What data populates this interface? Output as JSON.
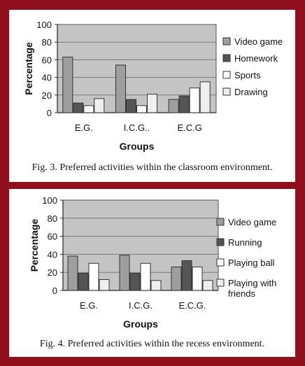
{
  "colors": {
    "frame": "#8f0f1c",
    "plot_bg": "#c4c4c4",
    "series": [
      "#9e9e9e",
      "#555555",
      "#ffffff",
      "#efefef"
    ]
  },
  "chart_data": [
    {
      "type": "bar",
      "title": "",
      "xlabel": "Groups",
      "ylabel": "Percentage",
      "ylim": [
        0,
        100
      ],
      "yticks": [
        "0",
        "20",
        "40",
        "60",
        "80",
        "100"
      ],
      "categories": [
        "E.G.",
        "I.C.G..",
        "E.C.G"
      ],
      "series": [
        {
          "name": "Video game",
          "values": [
            63,
            54,
            15
          ]
        },
        {
          "name": "Homework",
          "values": [
            11,
            15,
            19
          ]
        },
        {
          "name": "Sports",
          "values": [
            8,
            8,
            28
          ]
        },
        {
          "name": "Drawing",
          "values": [
            16,
            21,
            35
          ]
        }
      ],
      "legend": "right",
      "grid": true,
      "caption": "Fig. 3.  Preferred activities within the classroom environment."
    },
    {
      "type": "bar",
      "title": "",
      "xlabel": "Groups",
      "ylabel": "Percentage",
      "ylim": [
        0,
        100
      ],
      "yticks": [
        "0",
        "20",
        "40",
        "60",
        "80",
        "100"
      ],
      "categories": [
        "E.G.",
        "I.C.G.",
        "E.C.G."
      ],
      "series": [
        {
          "name": "Video game",
          "values": [
            38,
            39,
            26
          ]
        },
        {
          "name": "Running",
          "values": [
            19,
            19,
            33
          ]
        },
        {
          "name": "Playing ball",
          "values": [
            30,
            30,
            26
          ]
        },
        {
          "name": "Playing with friends",
          "legend_lines": [
            "Playing with",
            "friends"
          ],
          "values": [
            12,
            11,
            11
          ]
        }
      ],
      "legend": "right",
      "grid": true,
      "caption": "Fig. 4.  Preferred activities within the recess environment."
    }
  ]
}
